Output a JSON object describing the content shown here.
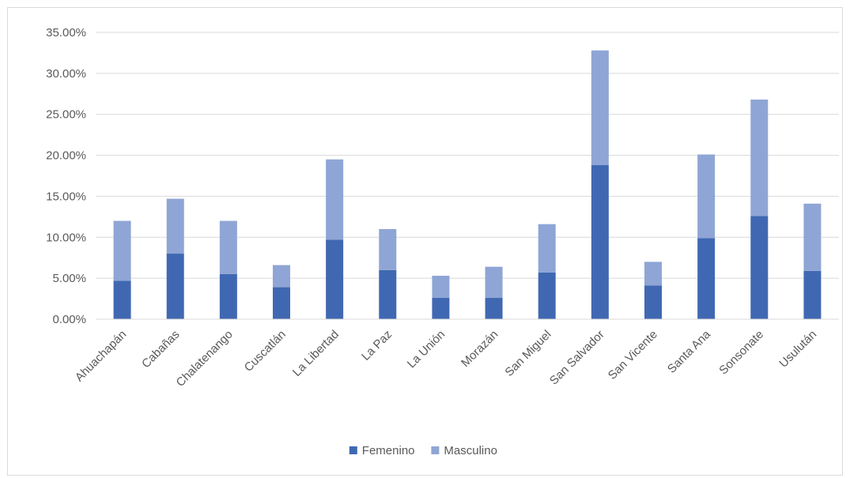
{
  "chart_data": {
    "type": "bar",
    "stacked": true,
    "categories": [
      "Ahuachapán",
      "Cabañas",
      "Chalatenango",
      "Cuscatlán",
      "La Libertad",
      "La Paz",
      "La Unión",
      "Morazán",
      "San Miguel",
      "San Salvador",
      "San Vicente",
      "Santa Ana",
      "Sonsonate",
      "Usulután"
    ],
    "series": [
      {
        "name": "Femenino",
        "color": "#4068b2",
        "values": [
          4.7,
          8.0,
          5.5,
          3.9,
          9.7,
          6.0,
          2.6,
          2.6,
          5.7,
          18.8,
          4.1,
          9.9,
          12.6,
          5.9
        ]
      },
      {
        "name": "Masculino",
        "color": "#8fa5d5",
        "values": [
          7.3,
          6.7,
          6.5,
          2.7,
          9.8,
          5.0,
          2.7,
          3.8,
          5.9,
          14.0,
          2.9,
          10.2,
          14.2,
          8.2
        ]
      }
    ],
    "ylim": [
      0,
      35
    ],
    "yticks": [
      "0.00%",
      "5.00%",
      "10.00%",
      "15.00%",
      "20.00%",
      "25.00%",
      "30.00%",
      "35.00%"
    ],
    "grid": true,
    "legend_position": "bottom"
  }
}
